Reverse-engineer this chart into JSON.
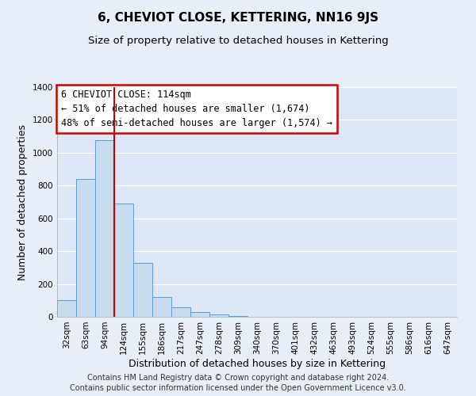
{
  "title": "6, CHEVIOT CLOSE, KETTERING, NN16 9JS",
  "subtitle": "Size of property relative to detached houses in Kettering",
  "xlabel": "Distribution of detached houses by size in Kettering",
  "ylabel": "Number of detached properties",
  "bar_labels": [
    "32sqm",
    "63sqm",
    "94sqm",
    "124sqm",
    "155sqm",
    "186sqm",
    "217sqm",
    "247sqm",
    "278sqm",
    "309sqm",
    "340sqm",
    "370sqm",
    "401sqm",
    "432sqm",
    "463sqm",
    "493sqm",
    "524sqm",
    "555sqm",
    "586sqm",
    "616sqm",
    "647sqm"
  ],
  "bar_values": [
    100,
    840,
    1075,
    690,
    330,
    120,
    60,
    30,
    15,
    7,
    2,
    0,
    0,
    0,
    0,
    0,
    0,
    0,
    0,
    0,
    0
  ],
  "bar_color": "#c8dcf0",
  "bar_edge_color": "#5a9fd4",
  "ylim": [
    0,
    1400
  ],
  "yticks": [
    0,
    200,
    400,
    600,
    800,
    1000,
    1200,
    1400
  ],
  "property_line_label": "6 CHEVIOT CLOSE: 114sqm",
  "annotation_line1": "← 51% of detached houses are smaller (1,674)",
  "annotation_line2": "48% of semi-detached houses are larger (1,574) →",
  "annotation_box_color": "#ffffff",
  "annotation_box_edge_color": "#cc0000",
  "vline_color": "#cc0000",
  "footnote1": "Contains HM Land Registry data © Crown copyright and database right 2024.",
  "footnote2": "Contains public sector information licensed under the Open Government Licence v3.0.",
  "bg_color": "#e8eef8",
  "plot_bg_color": "#dde6f4",
  "grid_color": "#ffffff",
  "title_fontsize": 11,
  "subtitle_fontsize": 9.5,
  "axis_label_fontsize": 9,
  "tick_fontsize": 7.5,
  "annotation_fontsize": 8.5,
  "footnote_fontsize": 7
}
